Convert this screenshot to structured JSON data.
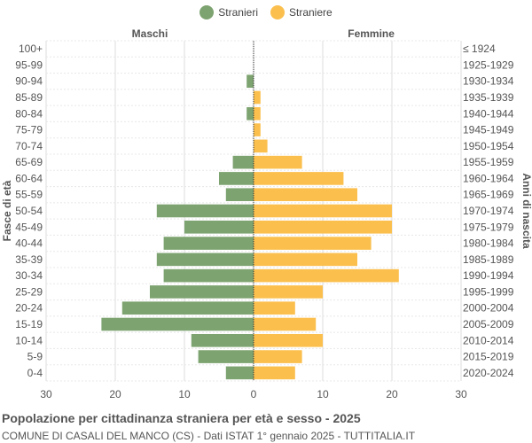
{
  "chart_data": {
    "type": "bar",
    "orientation": "horizontal-pyramid",
    "title": "Popolazione per cittadinanza straniera per età e sesso - 2025",
    "subtitle": "COMUNE DI CASALI DEL MANCO (CS) - Dati ISTAT 1° gennaio 2025 - TUTTITALIA.IT",
    "ylabel_left": "Fasce di età",
    "ylabel_right": "Anni di nascita",
    "left_header": "Maschi",
    "right_header": "Femmine",
    "xlim": [
      -30,
      30
    ],
    "xticks": [
      -30,
      -20,
      -10,
      0,
      10,
      20,
      30
    ],
    "xtick_labels": [
      "30",
      "20",
      "10",
      "0",
      "10",
      "20",
      "30"
    ],
    "grid": true,
    "legend_position": "top-center",
    "categories": [
      "100+",
      "95-99",
      "90-94",
      "85-89",
      "80-84",
      "75-79",
      "70-74",
      "65-69",
      "60-64",
      "55-59",
      "50-54",
      "45-49",
      "40-44",
      "35-39",
      "30-34",
      "25-29",
      "20-24",
      "15-19",
      "10-14",
      "5-9",
      "0-4"
    ],
    "birth_years": [
      "≤ 1924",
      "1925-1929",
      "1930-1934",
      "1935-1939",
      "1940-1944",
      "1945-1949",
      "1950-1954",
      "1955-1959",
      "1960-1964",
      "1965-1969",
      "1970-1974",
      "1975-1979",
      "1980-1984",
      "1985-1989",
      "1990-1994",
      "1995-1999",
      "2000-2004",
      "2005-2009",
      "2010-2014",
      "2015-2019",
      "2020-2024"
    ],
    "series": [
      {
        "name": "Stranieri",
        "color": "#7da370",
        "values": [
          0,
          0,
          1,
          0,
          1,
          0,
          0,
          3,
          5,
          4,
          14,
          10,
          13,
          14,
          13,
          15,
          19,
          22,
          9,
          8,
          4
        ]
      },
      {
        "name": "Straniere",
        "color": "#fbbf4d",
        "values": [
          0,
          0,
          0,
          1,
          1,
          1,
          2,
          7,
          13,
          15,
          20,
          20,
          17,
          15,
          21,
          10,
          6,
          9,
          10,
          7,
          6
        ]
      }
    ]
  }
}
